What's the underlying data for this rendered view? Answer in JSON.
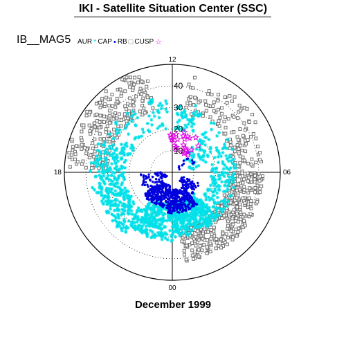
{
  "header": {
    "title": "IKI - Satellite Situation Center (SSC)"
  },
  "dataset_label": "IB__MAG5",
  "footer": {
    "label": "December 1999"
  },
  "chart_data": {
    "type": "scatter",
    "coordinate_system": "polar (magnetic local time vs. invariant latitude)",
    "title": "",
    "xlabel": "",
    "ylabel": "",
    "angular_axis": {
      "unit": "MLT hours",
      "tick_labels": [
        "12",
        "18",
        "00",
        "06"
      ]
    },
    "radial_axis": {
      "tick_labels": [
        "10",
        "20",
        "30",
        "40"
      ],
      "rlim": [
        0,
        50
      ]
    },
    "grid": true,
    "legend": {
      "placement": "top-left",
      "entries": [
        {
          "label": "AUR",
          "marker": "*",
          "color": "#00e0e8"
        },
        {
          "label": "CAP",
          "marker": "•",
          "color": "#0000dd"
        },
        {
          "label": "RB",
          "marker": "□",
          "color": "#707070"
        },
        {
          "label": "CUSP",
          "marker": "☆",
          "color": "#e000e0"
        }
      ]
    },
    "series": [
      {
        "name": "AUR",
        "color": "#00e0e8",
        "marker": "star",
        "regions": [
          {
            "mlt": [
              10.2,
              11.8
            ],
            "colat": [
              20,
              34
            ],
            "count": 55
          },
          {
            "mlt": [
              12.2,
              16.5
            ],
            "colat": [
              20,
              35
            ],
            "count": 80
          },
          {
            "mlt": [
              16.5,
              19.0
            ],
            "colat": [
              22,
              38
            ],
            "count": 150
          },
          {
            "mlt": [
              19.0,
              21.5
            ],
            "colat": [
              22,
              36
            ],
            "count": 180
          },
          {
            "mlt": [
              21.5,
              24.0
            ],
            "colat": [
              15,
              32
            ],
            "count": 260
          },
          {
            "mlt": [
              0.0,
              3.0
            ],
            "colat": [
              14,
              30
            ],
            "count": 380
          },
          {
            "mlt": [
              3.0,
              6.5
            ],
            "colat": [
              18,
              30
            ],
            "count": 120
          },
          {
            "mlt": [
              6.5,
              9.5
            ],
            "colat": [
              8,
              30
            ],
            "count": 90
          }
        ]
      },
      {
        "name": "CAP",
        "color": "#0000dd",
        "marker": "dot",
        "regions": [
          {
            "mlt": [
              18.0,
              20.5
            ],
            "colat": [
              3,
              15
            ],
            "count": 60
          },
          {
            "mlt": [
              20.5,
              23.5
            ],
            "colat": [
              6,
              17
            ],
            "count": 220
          },
          {
            "mlt": [
              23.5,
              2.5
            ],
            "colat": [
              8,
              19
            ],
            "count": 260
          },
          {
            "mlt": [
              2.5,
              4.5
            ],
            "colat": [
              5,
              14
            ],
            "count": 60
          },
          {
            "mlt": [
              7.5,
              9.5
            ],
            "colat": [
              3,
              12
            ],
            "count": 15
          }
        ]
      },
      {
        "name": "RB",
        "color": "#707070",
        "marker": "square",
        "regions": [
          {
            "mlt": [
              13.0,
              17.8
            ],
            "colat": [
              30,
              49
            ],
            "count": 230
          },
          {
            "mlt": [
              8.0,
              11.3
            ],
            "colat": [
              28,
              46
            ],
            "count": 80
          },
          {
            "mlt": [
              5.8,
              8.0
            ],
            "colat": [
              28,
              42
            ],
            "count": 60
          },
          {
            "mlt": [
              0.5,
              6.0
            ],
            "colat": [
              26,
              42
            ],
            "count": 380
          }
        ]
      },
      {
        "name": "CUSP",
        "color": "#e000e0",
        "marker": "star-outline",
        "regions": [
          {
            "mlt": [
              9.0,
              12.5
            ],
            "colat": [
              10,
              20
            ],
            "count": 26
          }
        ]
      }
    ]
  }
}
